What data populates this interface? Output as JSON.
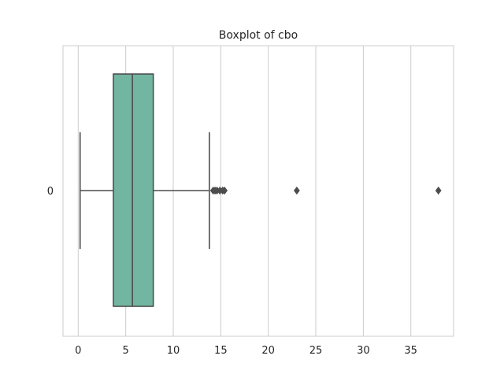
{
  "chart_data": {
    "type": "box",
    "title": "Boxplot of cbo",
    "xlabel": "",
    "ylabel": "",
    "category_label": "0",
    "xlim": [
      -1.6,
      39.5
    ],
    "xticks": [
      0,
      5,
      10,
      15,
      20,
      25,
      30,
      35
    ],
    "grid": "vertical",
    "box": {
      "min": 0.2,
      "q1": 3.7,
      "median": 5.7,
      "q3": 7.9,
      "max": 13.8
    },
    "outliers": [
      14.2,
      14.4,
      14.6,
      14.9,
      15.2,
      15.4,
      23.0,
      37.9
    ],
    "colors": {
      "box_fill": "#72b6a1",
      "line": "#4d4d4d",
      "grid": "#cccccc",
      "frame": "#cccccc"
    }
  }
}
